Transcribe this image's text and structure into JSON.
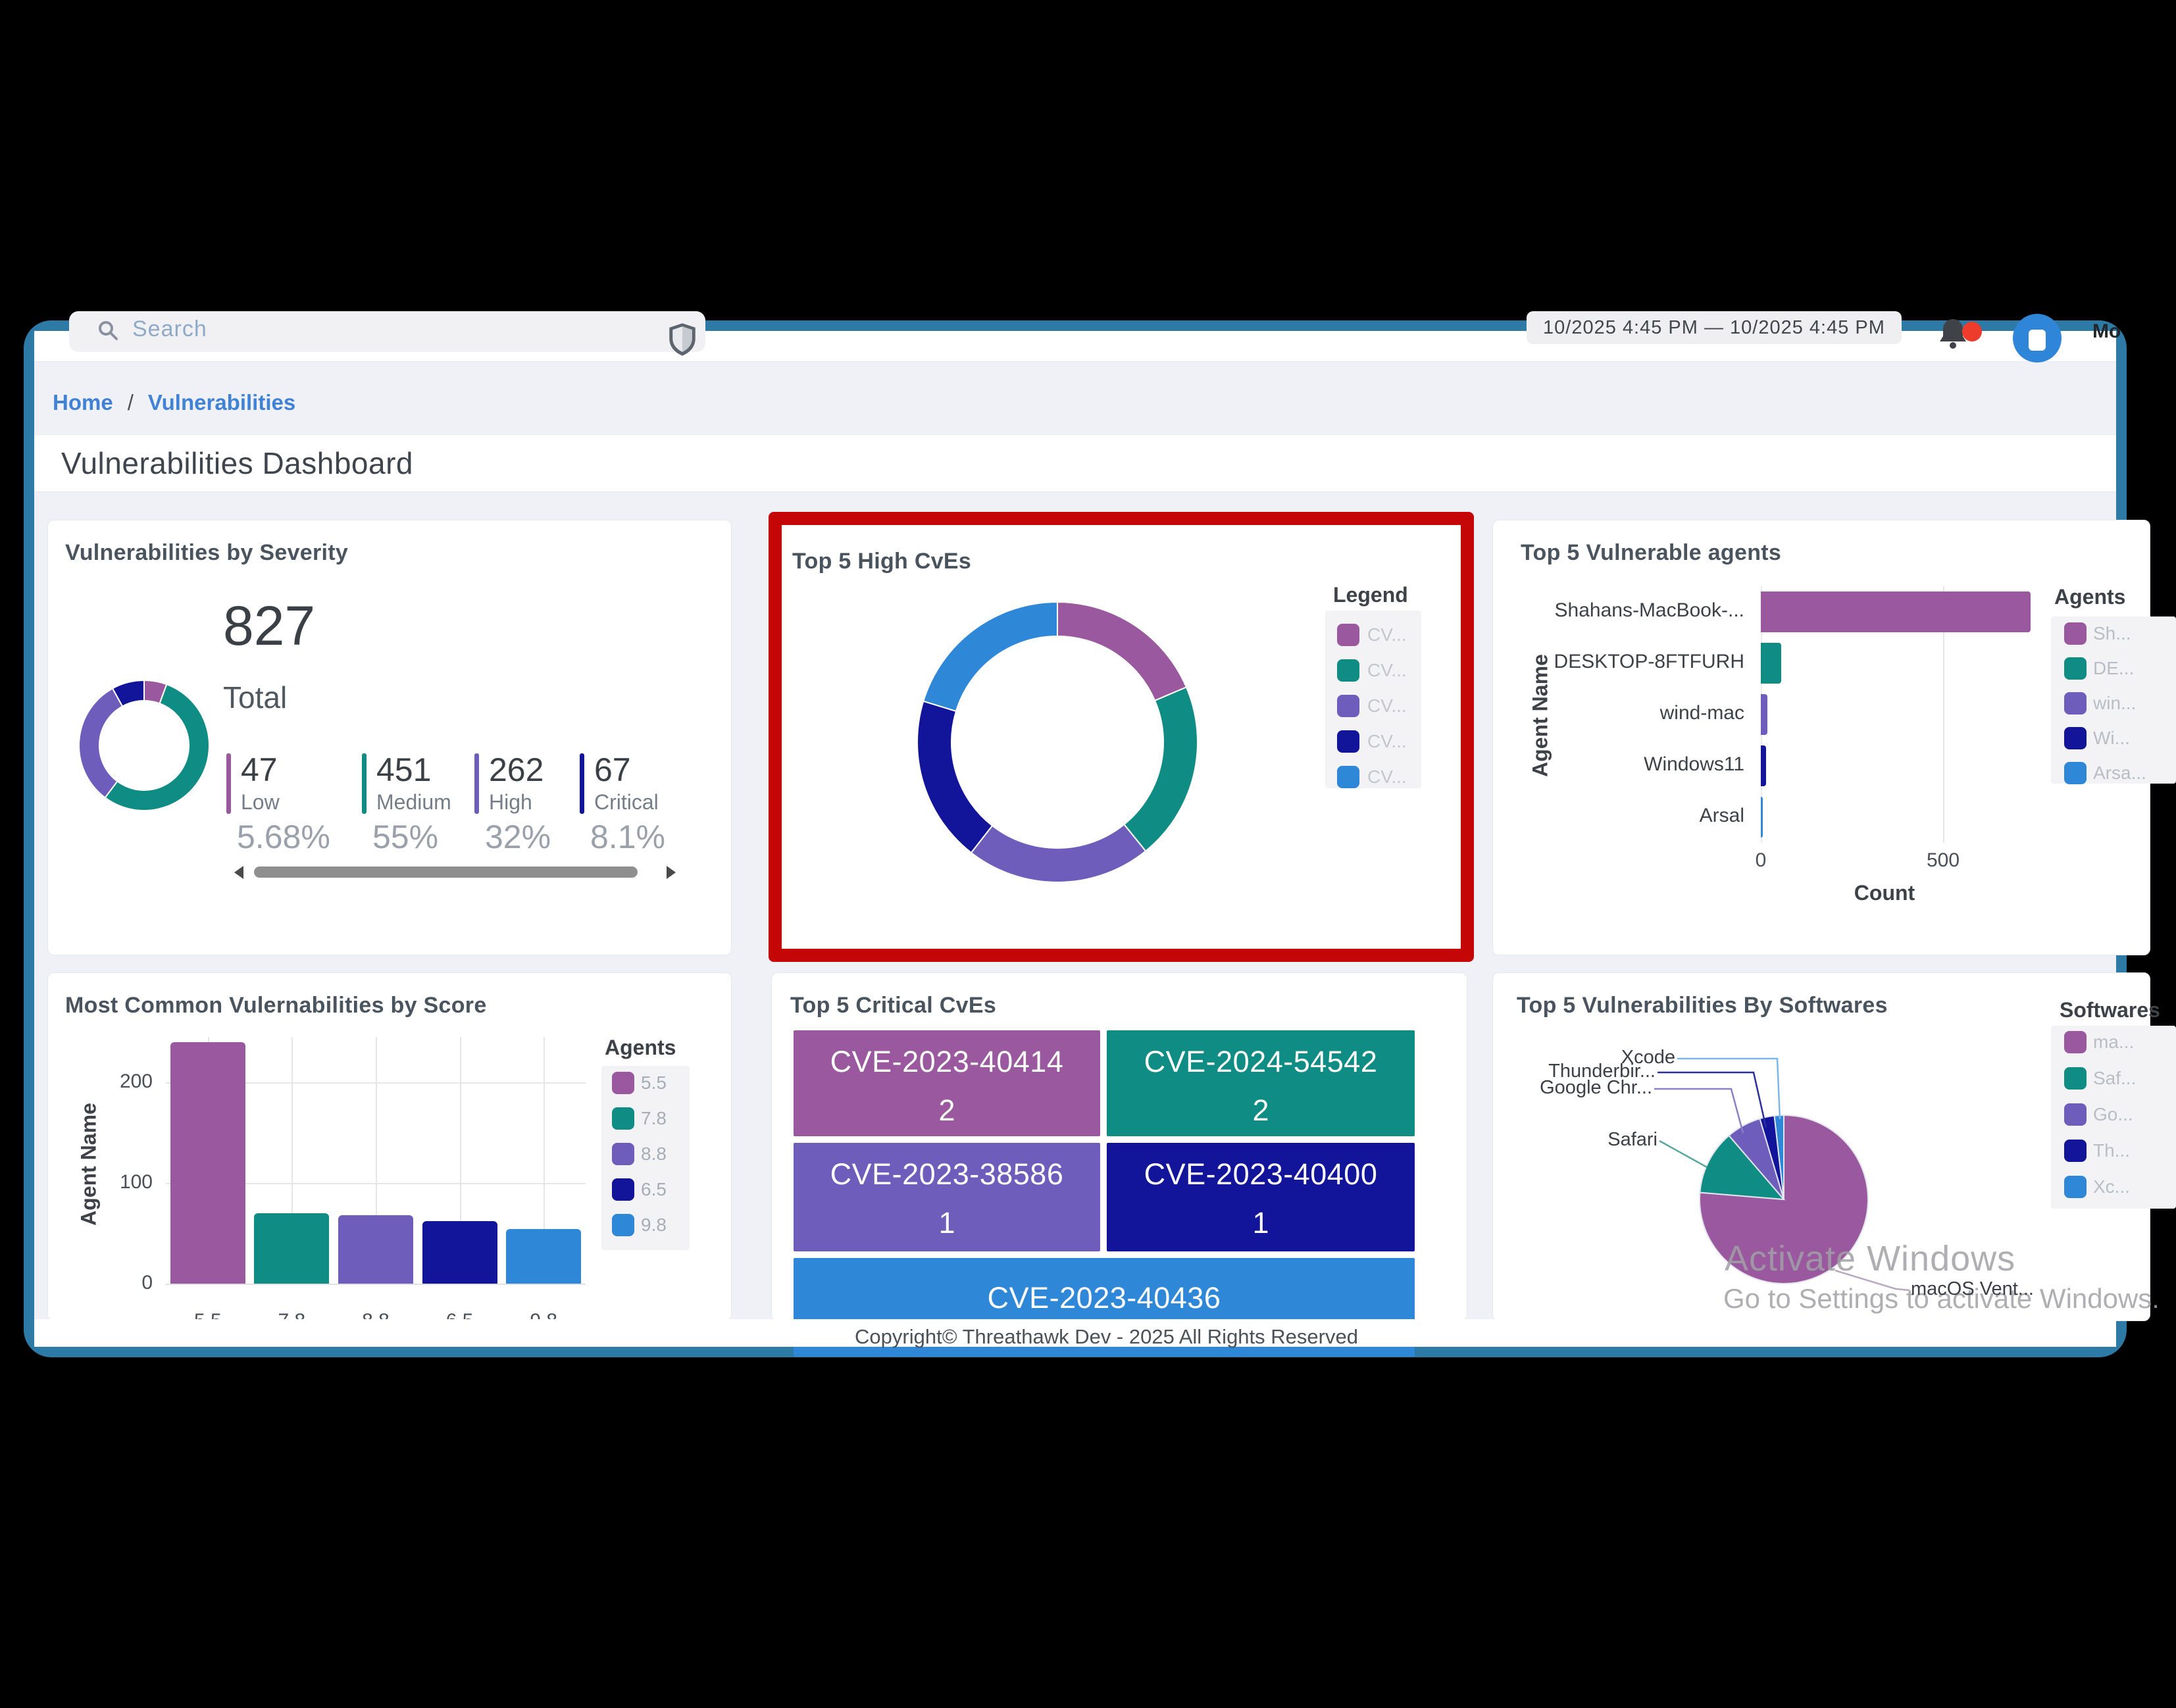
{
  "topbar": {
    "search_placeholder": "Search",
    "daterange": "10/2025 4:45 PM  —  10/2025 4:45 PM",
    "user_fragment": "Mo"
  },
  "breadcrumb": {
    "home": "Home",
    "separator": "/",
    "current": "Vulnerabilities"
  },
  "page_title": "Vulnerabilities Dashboard",
  "footer": {
    "copyright": "Copyright© Threathawk Dev - 2025 All Rights Reserved"
  },
  "watermark": {
    "line1": "Activate Windows",
    "line2": "Go to Settings to activate Windows."
  },
  "palette": {
    "series": [
      "#9a589e",
      "#0f8c84",
      "#6e5dba",
      "#12149a",
      "#2f87d8"
    ],
    "highlight_red": "#c40606",
    "window_border": "#2d7aa6",
    "link_blue": "#3f82d6"
  },
  "cards": {
    "severity": {
      "title": "Vulnerabilities by Severity",
      "total": "827",
      "total_label": "Total",
      "stats": [
        {
          "value": "47",
          "label": "Low",
          "pct": "5.68%"
        },
        {
          "value": "451",
          "label": "Medium",
          "pct": "55%"
        },
        {
          "value": "262",
          "label": "High",
          "pct": "32%"
        },
        {
          "value": "67",
          "label": "Critical",
          "pct": "8.1%"
        }
      ]
    },
    "high": {
      "title": "Top 5 High CvEs",
      "legend_title": "Legend"
    },
    "agents": {
      "title": "Top 5 Vulnerable agents",
      "xlabel": "Count",
      "ylabel": "Agent Name",
      "legend_title": "Agents"
    },
    "score": {
      "title": "Most Common Vulernabilities by Score",
      "ylabel": "Agent Name",
      "legend_title": "Agents"
    },
    "critical": {
      "title": "Top 5 Critical CvEs"
    },
    "softwares": {
      "title": "Top 5 Vulnerabilities By Softwares",
      "legend_title": "Softwares"
    }
  },
  "chart_data": [
    {
      "id": "severity-donut",
      "type": "donut",
      "labels": [
        "Low",
        "Medium",
        "High",
        "Critical"
      ],
      "values": [
        5.68,
        55,
        32,
        8.1
      ],
      "counts": [
        47,
        451,
        262,
        67
      ],
      "total": 827,
      "color_idx": [
        0,
        1,
        2,
        3
      ]
    },
    {
      "id": "high-cves-donut",
      "type": "donut",
      "labels": [
        "CV...",
        "CV...",
        "CV...",
        "CV...",
        "CV..."
      ],
      "values": [
        18.6,
        20.6,
        21.4,
        19.2,
        20.3
      ],
      "color_idx": [
        0,
        1,
        2,
        3,
        4
      ],
      "legend": [
        "CV...",
        "CV...",
        "CV...",
        "CV...",
        "CV..."
      ]
    },
    {
      "id": "agents-bars",
      "type": "bar",
      "orientation": "horizontal",
      "categories": [
        "Shahans-MacBook-...",
        "DESKTOP-8FTFURH",
        "wind-mac",
        "Windows11",
        "Arsal"
      ],
      "values": [
        740,
        56,
        18,
        15,
        5
      ],
      "xticks": [
        0,
        500
      ],
      "xlabel": "Count",
      "ylabel": "Agent Name",
      "color_idx": [
        0,
        1,
        2,
        3,
        4
      ],
      "legend": [
        "Sh...",
        "DE...",
        "win...",
        "Wi...",
        "Arsa..."
      ]
    },
    {
      "id": "score-bars",
      "type": "bar",
      "orientation": "vertical",
      "categories": [
        "5.5",
        "7.8",
        "8.8",
        "6.5",
        "9.8"
      ],
      "values": [
        240,
        70,
        68,
        62,
        54
      ],
      "yticks": [
        0,
        100,
        200
      ],
      "ylim": [
        0,
        246
      ],
      "ylabel": "Agent Name",
      "color_idx": [
        0,
        1,
        2,
        3,
        4
      ],
      "legend": [
        "5.5",
        "7.8",
        "8.8",
        "6.5",
        "9.8"
      ]
    },
    {
      "id": "critical-treemap",
      "type": "treemap",
      "tiles": [
        {
          "label": "CVE-2023-40414",
          "value": "2"
        },
        {
          "label": "CVE-2024-54542",
          "value": "2"
        },
        {
          "label": "CVE-2023-38586",
          "value": "1"
        },
        {
          "label": "CVE-2023-40400",
          "value": "1"
        },
        {
          "label": "CVE-2023-40436",
          "value": ""
        }
      ],
      "color_idx": [
        0,
        1,
        2,
        3,
        4
      ]
    },
    {
      "id": "softwares-pie",
      "type": "pie",
      "labels": [
        "macOS Vent...",
        "Safari",
        "Google Chr...",
        "Thunderbir...",
        "Xcode"
      ],
      "values": [
        76.3,
        12.4,
        6.7,
        2.8,
        1.8
      ],
      "color_idx": [
        0,
        1,
        2,
        3,
        4
      ],
      "legend": [
        "ma...",
        "Saf...",
        "Go...",
        "Th...",
        "Xc..."
      ]
    }
  ]
}
